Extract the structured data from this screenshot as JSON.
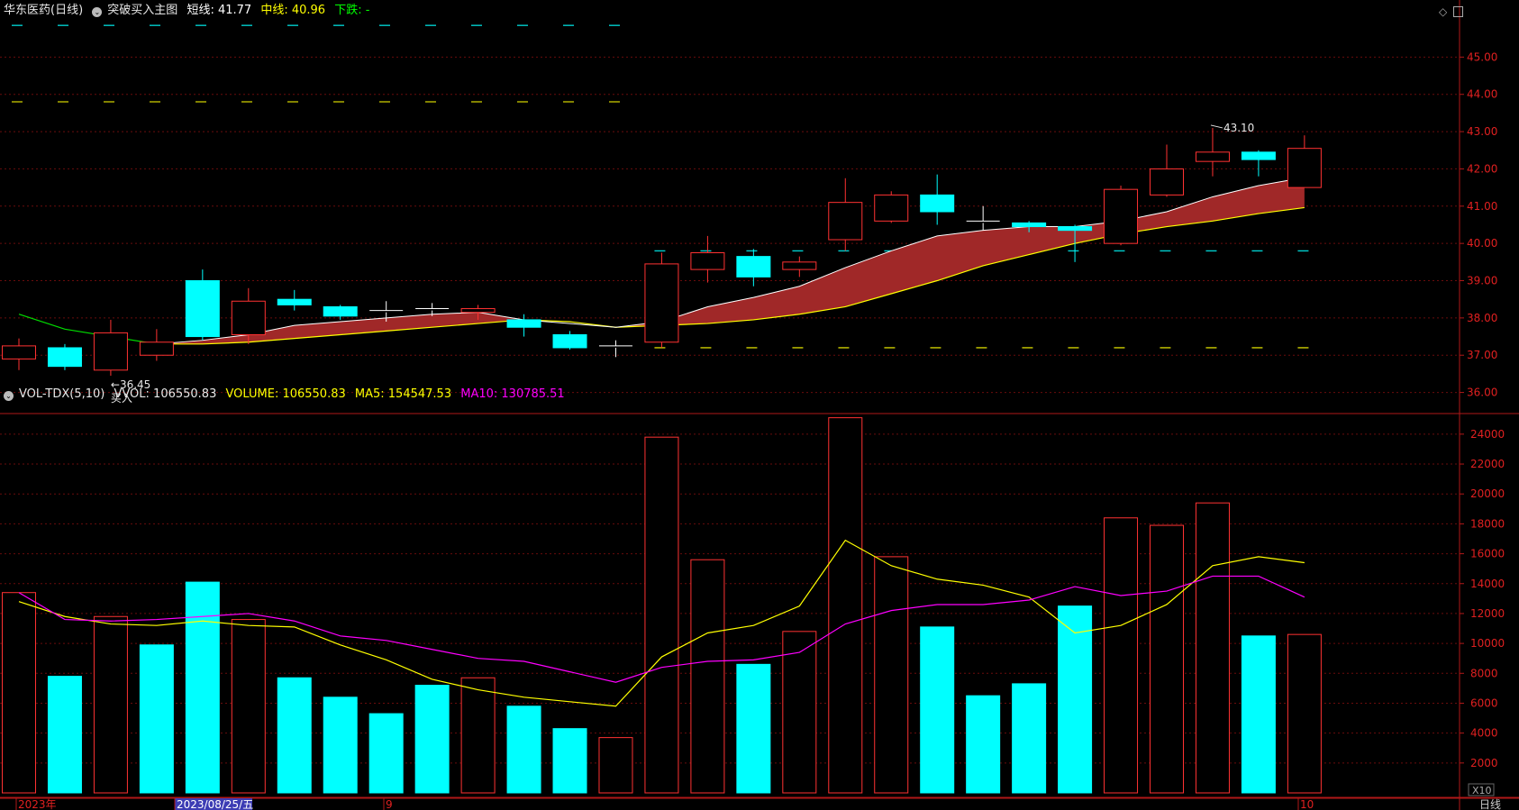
{
  "header": {
    "stock": "华东医药(日线)",
    "indicator": "突破买入主图",
    "short_label": "短线: 41.77",
    "mid_label": "中线: 40.96",
    "down_label": "下跌: -"
  },
  "vol_header": {
    "name": "VOL-TDX(5,10)",
    "vvol": "VVOL: 106550.83",
    "volume": "VOLUME: 106550.83",
    "ma5": "MA5: 154547.53",
    "ma10": "MA10: 130785.51"
  },
  "colors": {
    "up": "#ff3232",
    "down": "#00ffff",
    "short": "#ffffff",
    "mid": "#ffff00",
    "band": "#a02828",
    "ma5": "#ffff00",
    "ma10": "#ff00ff"
  },
  "annotations": {
    "low": "←36.45",
    "buy": "买入",
    "high": "43.10"
  },
  "x_labels": [
    {
      "label": "2023年",
      "index": 0
    },
    {
      "label": "2023/08/25/五",
      "index": 4
    },
    {
      "label": "9",
      "index": 8
    },
    {
      "label": "10",
      "index": 28
    }
  ],
  "corner_labels": {
    "x10": "X10",
    "period": "日线"
  },
  "chart_data": [
    {
      "type": "candlestick",
      "ylim": [
        35.7,
        46.0
      ],
      "yticks": [
        36.0,
        37.0,
        38.0,
        39.0,
        40.0,
        41.0,
        42.0,
        43.0,
        44.0,
        45.0
      ],
      "candles": [
        {
          "o": 36.9,
          "h": 37.45,
          "l": 36.6,
          "c": 37.25
        },
        {
          "o": 37.2,
          "h": 37.3,
          "l": 36.6,
          "c": 36.7
        },
        {
          "o": 36.6,
          "h": 37.95,
          "l": 36.45,
          "c": 37.6
        },
        {
          "o": 37.0,
          "h": 37.7,
          "l": 36.85,
          "c": 37.35
        },
        {
          "o": 39.0,
          "h": 39.3,
          "l": 37.4,
          "c": 37.5
        },
        {
          "o": 37.55,
          "h": 38.8,
          "l": 37.3,
          "c": 38.45
        },
        {
          "o": 38.5,
          "h": 38.75,
          "l": 38.2,
          "c": 38.35
        },
        {
          "o": 38.3,
          "h": 38.35,
          "l": 37.95,
          "c": 38.05
        },
        {
          "o": 38.2,
          "h": 38.45,
          "l": 37.9,
          "c": 38.15
        },
        {
          "o": 38.25,
          "h": 38.4,
          "l": 38.05,
          "c": 38.2
        },
        {
          "o": 38.15,
          "h": 38.35,
          "l": 37.95,
          "c": 38.25
        },
        {
          "o": 37.95,
          "h": 38.1,
          "l": 37.5,
          "c": 37.75
        },
        {
          "o": 37.55,
          "h": 37.65,
          "l": 37.15,
          "c": 37.2
        },
        {
          "o": 37.25,
          "h": 37.4,
          "l": 36.95,
          "c": 37.2
        },
        {
          "o": 37.35,
          "h": 39.75,
          "l": 37.2,
          "c": 39.45
        },
        {
          "o": 39.3,
          "h": 40.2,
          "l": 38.95,
          "c": 39.75
        },
        {
          "o": 39.65,
          "h": 39.85,
          "l": 38.85,
          "c": 39.1
        },
        {
          "o": 39.3,
          "h": 39.65,
          "l": 39.1,
          "c": 39.5
        },
        {
          "o": 40.1,
          "h": 41.75,
          "l": 39.8,
          "c": 41.1
        },
        {
          "o": 40.6,
          "h": 41.4,
          "l": 40.55,
          "c": 41.3
        },
        {
          "o": 41.3,
          "h": 41.85,
          "l": 40.5,
          "c": 40.85
        },
        {
          "o": 40.6,
          "h": 41.0,
          "l": 40.35,
          "c": 40.55
        },
        {
          "o": 40.55,
          "h": 40.6,
          "l": 40.3,
          "c": 40.45
        },
        {
          "o": 40.45,
          "h": 40.5,
          "l": 39.5,
          "c": 40.35
        },
        {
          "o": 40.0,
          "h": 41.55,
          "l": 39.95,
          "c": 41.45
        },
        {
          "o": 41.3,
          "h": 42.65,
          "l": 41.25,
          "c": 42.0
        },
        {
          "o": 42.2,
          "h": 43.1,
          "l": 41.8,
          "c": 42.45
        },
        {
          "o": 42.45,
          "h": 42.5,
          "l": 41.8,
          "c": 42.25
        },
        {
          "o": 41.5,
          "h": 42.9,
          "l": 41.5,
          "c": 42.55
        }
      ],
      "series": [
        {
          "name": "短线",
          "values": [
            null,
            null,
            null,
            37.3,
            37.4,
            37.55,
            37.8,
            37.9,
            38.0,
            38.1,
            38.15,
            37.95,
            37.85,
            37.75,
            37.9,
            38.3,
            38.55,
            38.85,
            39.35,
            39.8,
            40.2,
            40.35,
            40.45,
            40.45,
            40.6,
            40.85,
            41.25,
            41.55,
            41.77
          ]
        },
        {
          "name": "中线",
          "values": [
            38.1,
            37.7,
            37.5,
            37.3,
            37.3,
            37.35,
            37.45,
            37.55,
            37.65,
            37.75,
            37.85,
            37.95,
            37.9,
            37.75,
            37.8,
            37.85,
            37.95,
            38.1,
            38.3,
            38.65,
            39.0,
            39.4,
            39.7,
            40.0,
            40.25,
            40.45,
            40.6,
            40.8,
            40.96
          ]
        }
      ],
      "dashed_levels": [
        {
          "value": 45.85,
          "color": "#00d0d0",
          "from": 0,
          "to": 13
        },
        {
          "value": 43.8,
          "color": "#d0d000",
          "from": 0,
          "to": 13
        },
        {
          "value": 39.8,
          "color": "#00d0d0",
          "from": 14,
          "to": 28
        },
        {
          "value": 37.2,
          "color": "#d0d000",
          "from": 14,
          "to": 28
        }
      ]
    },
    {
      "type": "bar",
      "ylim": [
        0,
        25800
      ],
      "yticks": [
        2000,
        4000,
        6000,
        8000,
        10000,
        12000,
        14000,
        16000,
        18000,
        20000,
        22000,
        24000
      ],
      "values": [
        13400,
        7800,
        11800,
        9900,
        14100,
        11600,
        7700,
        6400,
        5300,
        7200,
        7700,
        5800,
        4300,
        3700,
        23800,
        15600,
        8600,
        10800,
        25100,
        15800,
        11100,
        6500,
        7300,
        12500,
        18400,
        17900,
        19400,
        10500,
        10600
      ],
      "up": [
        true,
        false,
        true,
        false,
        false,
        true,
        false,
        false,
        false,
        false,
        true,
        false,
        false,
        true,
        true,
        true,
        false,
        true,
        true,
        true,
        false,
        false,
        false,
        false,
        true,
        true,
        true,
        false,
        true
      ],
      "series": [
        {
          "name": "MA5",
          "values": [
            12800,
            11800,
            11300,
            11200,
            11500,
            11200,
            11100,
            9900,
            8900,
            7600,
            6900,
            6400,
            6100,
            5800,
            9100,
            10700,
            11200,
            12500,
            16900,
            15200,
            14300,
            13900,
            13100,
            10700,
            11200,
            12600,
            15200,
            15800,
            15400
          ]
        },
        {
          "name": "MA10",
          "values": [
            13400,
            11600,
            11500,
            11600,
            11800,
            12000,
            11500,
            10500,
            10200,
            9600,
            9000,
            8800,
            8100,
            7400,
            8400,
            8800,
            8900,
            9400,
            11300,
            12200,
            12600,
            12600,
            12900,
            13800,
            13200,
            13500,
            14500,
            14500,
            13100
          ]
        }
      ]
    }
  ]
}
